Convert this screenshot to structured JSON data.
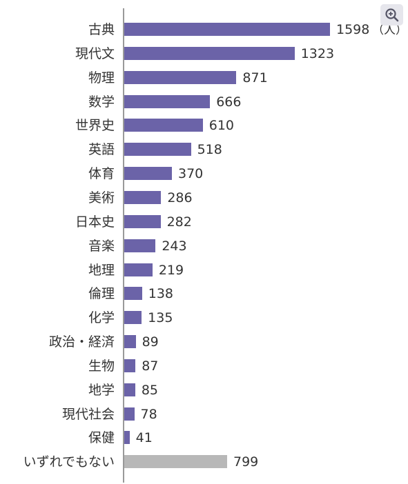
{
  "zoom_icon": "zoom-in-icon",
  "colors": {
    "bar": "#6b63a8",
    "bar_other": "#b8b8b8",
    "axis": "#999999",
    "text": "#333333"
  },
  "unit_suffix": "（人）",
  "chart_data": {
    "type": "bar",
    "orientation": "horizontal",
    "xlim": [
      0,
      1600
    ],
    "categories": [
      "古典",
      "現代文",
      "物理",
      "数学",
      "世界史",
      "英語",
      "体育",
      "美術",
      "日本史",
      "音楽",
      "地理",
      "倫理",
      "化学",
      "政治・経済",
      "生物",
      "地学",
      "現代社会",
      "保健",
      "いずれでもない"
    ],
    "values": [
      1598,
      1323,
      871,
      666,
      610,
      518,
      370,
      286,
      282,
      243,
      219,
      138,
      135,
      89,
      87,
      85,
      78,
      41,
      799
    ],
    "value_labels": [
      "1598",
      "1323",
      "871",
      "666",
      "610",
      "518",
      "370",
      "286",
      "282",
      "243",
      "219",
      "138",
      "135",
      "89",
      "87",
      "85",
      "78",
      "41",
      "799"
    ],
    "highlight_other": "いずれでもない"
  }
}
